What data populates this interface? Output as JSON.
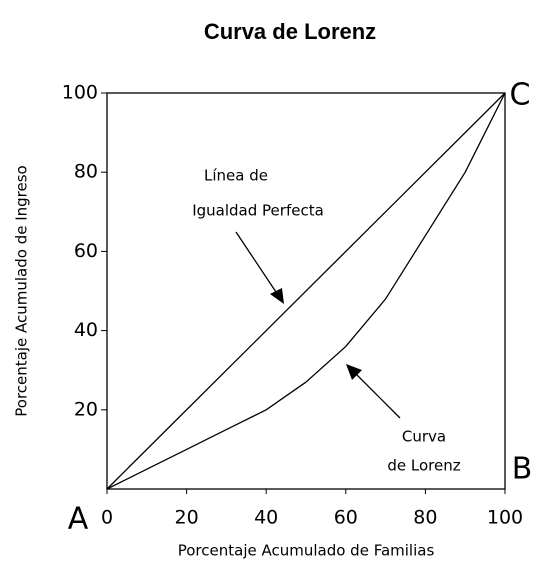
{
  "chart_data": {
    "type": "line",
    "title": "Curva de Lorenz",
    "x_label": "Porcentaje Acumulado de Familias",
    "y_label": "Porcentaje Acumulado de Ingreso",
    "series": [
      {
        "color": "#000000",
        "x": [
          0,
          100
        ],
        "values": [
          0,
          100
        ]
      },
      {
        "color": "#000000",
        "x": [
          0,
          10,
          20,
          30,
          40,
          50,
          60,
          70,
          80,
          90,
          100
        ],
        "values": [
          0,
          5,
          10,
          15,
          20,
          27,
          36,
          48,
          64,
          80,
          100
        ]
      }
    ],
    "annotations": [
      "Línea de",
      "Igualdad Perfecta",
      "Curva",
      "de Lorenz",
      "A",
      "B",
      "C"
    ],
    "xlim": [
      0,
      100
    ],
    "ylim": [
      0,
      100
    ],
    "xticks": [
      0,
      20,
      40,
      60,
      80,
      100
    ],
    "yticks": [
      20,
      40,
      60,
      80,
      100
    ],
    "grid": false
  }
}
